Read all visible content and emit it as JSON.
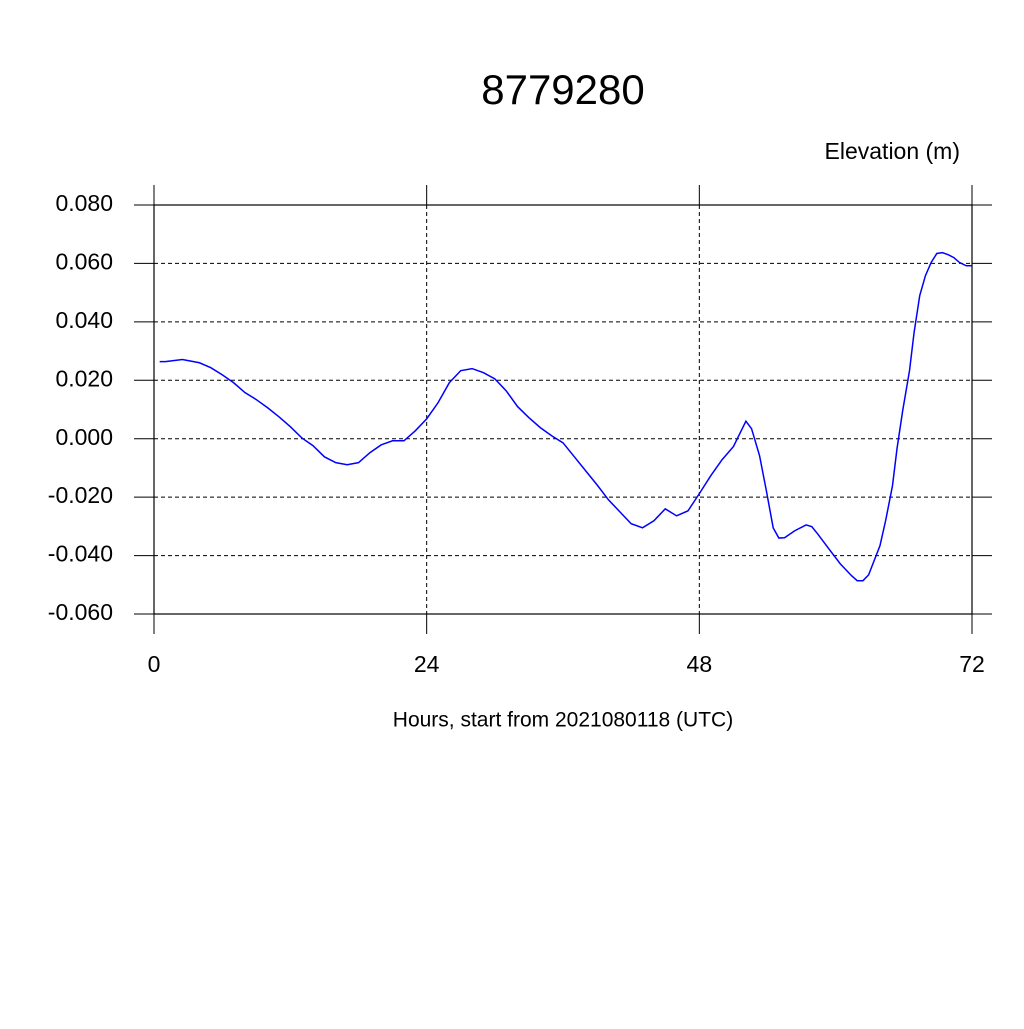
{
  "chart_data": {
    "type": "line",
    "title": "8779280",
    "subtitle": "Elevation (m)",
    "x_label": "Hours, start from 2021080118 (UTC)",
    "x": [
      0.5,
      1,
      2.5,
      4,
      5,
      6,
      7,
      8,
      9,
      10,
      11,
      12,
      13,
      14,
      15,
      16,
      17,
      18,
      19,
      20,
      21,
      22,
      23,
      24,
      25,
      26,
      27,
      28,
      29,
      30,
      31,
      32,
      33,
      34,
      35,
      36,
      37,
      38,
      39,
      40,
      41,
      42,
      43,
      44,
      45,
      46,
      47,
      48,
      49,
      50,
      51,
      52.1,
      52.6,
      53.3,
      53.9,
      54.5,
      55.0,
      55.5,
      56.4,
      57.4,
      57.9,
      58.4,
      59.4,
      60.4,
      61.4,
      61.9,
      62.4,
      62.9,
      63.9,
      64.4,
      65.0,
      65.4,
      65.9,
      66.5,
      66.9,
      67.4,
      67.9,
      68.4,
      68.9,
      69.4,
      69.9,
      70.4,
      70.9,
      71.5,
      72
    ],
    "series": [
      {
        "name": "Elevation",
        "color": "#0000ff",
        "values": [
          0.0264,
          0.0264,
          0.0271,
          0.026,
          0.0243,
          0.0219,
          0.0192,
          0.0158,
          0.0134,
          0.0106,
          0.0075,
          0.0041,
          0.0003,
          -0.0024,
          -0.0062,
          -0.0082,
          -0.0089,
          -0.0082,
          -0.0048,
          -0.0021,
          -0.0007,
          -0.0007,
          0.0027,
          0.0068,
          0.0123,
          0.0192,
          0.0233,
          0.024,
          0.0226,
          0.0205,
          0.0164,
          0.011,
          0.0072,
          0.0038,
          0.001,
          -0.0014,
          -0.0062,
          -0.011,
          -0.0158,
          -0.0209,
          -0.025,
          -0.0291,
          -0.0305,
          -0.0281,
          -0.024,
          -0.0264,
          -0.0247,
          -0.0188,
          -0.0127,
          -0.0072,
          -0.0027,
          0.006,
          0.0034,
          -0.0058,
          -0.0178,
          -0.0305,
          -0.034,
          -0.0339,
          -0.0315,
          -0.0295,
          -0.0301,
          -0.0325,
          -0.0377,
          -0.0428,
          -0.0469,
          -0.0486,
          -0.0486,
          -0.0466,
          -0.0366,
          -0.028,
          -0.0161,
          -0.0034,
          0.0096,
          0.0233,
          0.0363,
          0.049,
          0.0558,
          0.0603,
          0.0634,
          0.0637,
          0.063,
          0.062,
          0.0603,
          0.0592,
          0.0592
        ]
      }
    ],
    "xlim": [
      0,
      72
    ],
    "xticks": [
      0,
      24,
      48,
      72
    ],
    "ylim": [
      -0.06,
      0.08
    ],
    "yticks": [
      {
        "value": -0.06,
        "label": "-0.060"
      },
      {
        "value": -0.04,
        "label": "-0.040"
      },
      {
        "value": -0.02,
        "label": "-0.020"
      },
      {
        "value": 0,
        "label": "0.000"
      },
      {
        "value": 0.02,
        "label": "0.020"
      },
      {
        "value": 0.04,
        "label": "0.040"
      },
      {
        "value": 0.06,
        "label": "0.060"
      },
      {
        "value": 0.08,
        "label": "0.080"
      }
    ],
    "grid": true
  }
}
